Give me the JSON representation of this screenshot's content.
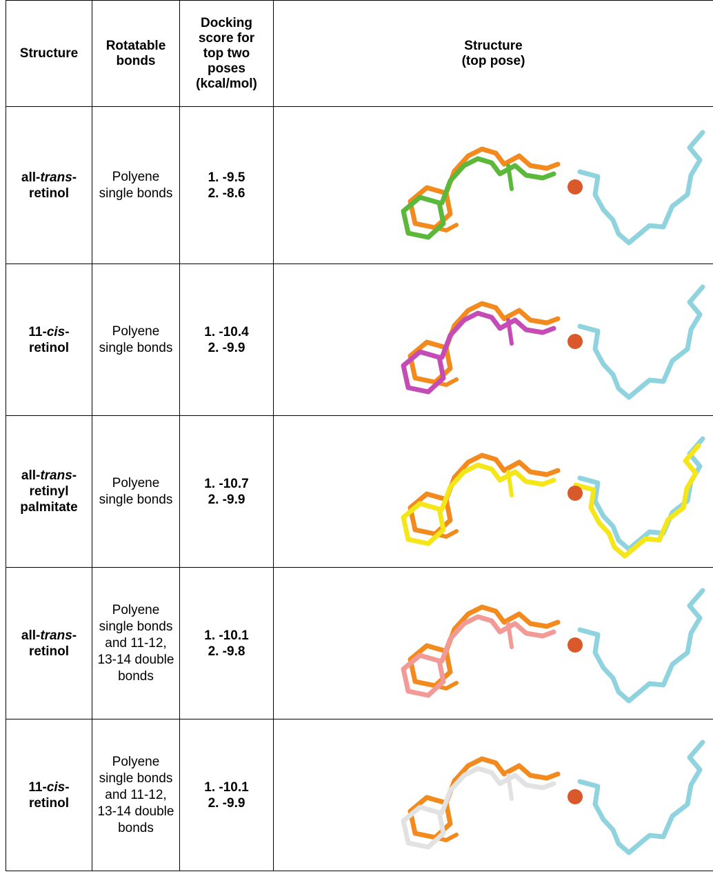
{
  "table": {
    "header": [
      "Structure",
      "Rotatable bonds",
      "Docking score for top two poses (kcal/mol)",
      "Structure (top pose)"
    ],
    "rows": [
      {
        "structure": [
          {
            "text": "all-"
          },
          {
            "text": "trans",
            "italic": true
          },
          {
            "text": "-retinol"
          }
        ],
        "bonds": "Polyene single bonds",
        "scores": [
          "1. -9.5",
          "2. -8.6"
        ],
        "pose_color": "#5cb83a"
      },
      {
        "structure": [
          {
            "text": "11-"
          },
          {
            "text": "cis",
            "italic": true
          },
          {
            "text": "-retinol"
          }
        ],
        "bonds": "Polyene single bonds",
        "scores": [
          "1. -10.4",
          "2. -9.9"
        ],
        "pose_color": "#c54bb5"
      },
      {
        "structure": [
          {
            "text": "all-"
          },
          {
            "text": "trans",
            "italic": true
          },
          {
            "text": "-retinyl palmitate"
          }
        ],
        "bonds": "Polyene single bonds",
        "scores": [
          "1. -10.7",
          "2. -9.9"
        ],
        "pose_color": "#f5e61a"
      },
      {
        "structure": [
          {
            "text": "all-"
          },
          {
            "text": "trans",
            "italic": true
          },
          {
            "text": "-retinol"
          }
        ],
        "bonds": "Polyene single bonds and 11-12, 13-14 double bonds",
        "scores": [
          "1. -10.1",
          "2. -9.8"
        ],
        "pose_color": "#f29a96"
      },
      {
        "structure": [
          {
            "text": "11-"
          },
          {
            "text": "cis",
            "italic": true
          },
          {
            "text": "-retinol"
          }
        ],
        "bonds": "Polyene single bonds and 11-12, 13-14 double bonds",
        "scores": [
          "1. -10.1",
          "2. -9.9"
        ],
        "pose_color": "#e2e2e2"
      }
    ]
  }
}
